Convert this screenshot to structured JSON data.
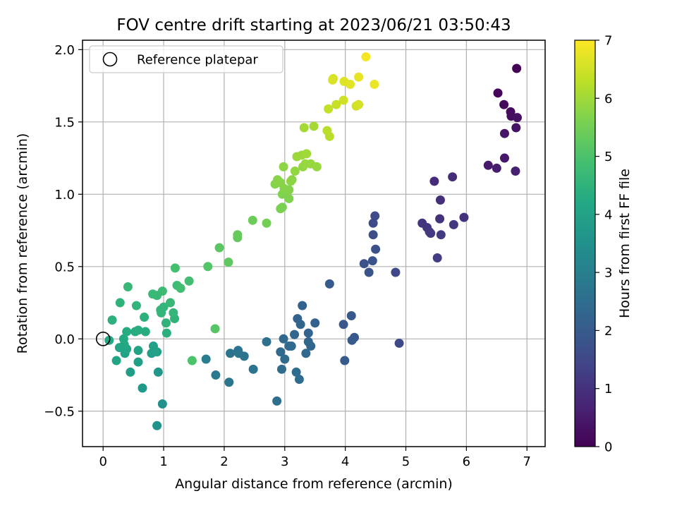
{
  "chart_data": {
    "type": "scatter",
    "title": "FOV centre drift starting at 2023/06/21 03:50:43",
    "xlabel": "Angular distance from reference (arcmin)",
    "ylabel": "Rotation from reference (arcmin)",
    "xlim": [
      -0.34,
      7.3
    ],
    "ylim": [
      -0.745,
      2.065
    ],
    "xticks": [
      "0",
      "1",
      "2",
      "3",
      "4",
      "5",
      "6",
      "7"
    ],
    "xtick_values": [
      0,
      1,
      2,
      3,
      4,
      5,
      6,
      7
    ],
    "yticks": [
      "−0.5",
      "0.0",
      "0.5",
      "1.0",
      "1.5",
      "2.0"
    ],
    "ytick_values": [
      -0.5,
      0,
      0.5,
      1.0,
      1.5,
      2.0
    ],
    "grid": true,
    "legend": {
      "placement": "top-left",
      "entries": [
        "Reference platepar"
      ]
    },
    "reference_point": {
      "x": 0,
      "y": 0
    },
    "colorbar": {
      "label": "Hours from first FF file",
      "colormap": "viridis",
      "range": [
        0,
        7
      ],
      "ticks": [
        "0",
        "1",
        "2",
        "3",
        "4",
        "5",
        "6",
        "7"
      ],
      "tick_values": [
        0,
        1,
        2,
        3,
        4,
        5,
        6,
        7
      ]
    },
    "points": [
      {
        "x": 6.83,
        "y": 1.87,
        "t": 0.05
      },
      {
        "x": 6.52,
        "y": 1.7,
        "t": 0.1
      },
      {
        "x": 6.62,
        "y": 1.62,
        "t": 0.15
      },
      {
        "x": 6.73,
        "y": 1.57,
        "t": 0.2
      },
      {
        "x": 6.74,
        "y": 1.54,
        "t": 0.25
      },
      {
        "x": 6.84,
        "y": 1.53,
        "t": 0.3
      },
      {
        "x": 6.82,
        "y": 1.46,
        "t": 0.35
      },
      {
        "x": 6.63,
        "y": 1.42,
        "t": 0.4
      },
      {
        "x": 6.63,
        "y": 1.25,
        "t": 0.45
      },
      {
        "x": 6.36,
        "y": 1.2,
        "t": 0.5
      },
      {
        "x": 6.5,
        "y": 1.18,
        "t": 0.55
      },
      {
        "x": 6.81,
        "y": 1.16,
        "t": 0.6
      },
      {
        "x": 5.47,
        "y": 1.09,
        "t": 0.85
      },
      {
        "x": 5.77,
        "y": 1.12,
        "t": 0.9
      },
      {
        "x": 5.57,
        "y": 0.96,
        "t": 0.95
      },
      {
        "x": 5.56,
        "y": 0.83,
        "t": 1.0
      },
      {
        "x": 5.96,
        "y": 0.84,
        "t": 1.0
      },
      {
        "x": 5.27,
        "y": 0.8,
        "t": 1.05
      },
      {
        "x": 5.35,
        "y": 0.77,
        "t": 1.1
      },
      {
        "x": 5.79,
        "y": 0.79,
        "t": 1.1
      },
      {
        "x": 5.39,
        "y": 0.74,
        "t": 1.15
      },
      {
        "x": 5.41,
        "y": 0.73,
        "t": 1.2
      },
      {
        "x": 5.58,
        "y": 0.72,
        "t": 1.2
      },
      {
        "x": 5.52,
        "y": 0.56,
        "t": 1.25
      },
      {
        "x": 4.49,
        "y": 0.85,
        "t": 1.6
      },
      {
        "x": 4.46,
        "y": 0.8,
        "t": 1.62
      },
      {
        "x": 4.46,
        "y": 0.72,
        "t": 1.65
      },
      {
        "x": 4.5,
        "y": 0.62,
        "t": 1.7
      },
      {
        "x": 4.31,
        "y": 0.52,
        "t": 1.75
      },
      {
        "x": 4.45,
        "y": 0.54,
        "t": 1.78
      },
      {
        "x": 4.39,
        "y": 0.46,
        "t": 1.8
      },
      {
        "x": 4.83,
        "y": 0.46,
        "t": 1.5
      },
      {
        "x": 4.89,
        "y": -0.03,
        "t": 1.55
      },
      {
        "x": 3.74,
        "y": 0.38,
        "t": 2.0
      },
      {
        "x": 4.1,
        "y": 0.16,
        "t": 1.9
      },
      {
        "x": 3.97,
        "y": 0.1,
        "t": 1.95
      },
      {
        "x": 4.15,
        "y": 0.01,
        "t": 1.9
      },
      {
        "x": 4.11,
        "y": -0.01,
        "t": 1.95
      },
      {
        "x": 3.99,
        "y": -0.15,
        "t": 2.0
      },
      {
        "x": 3.29,
        "y": 0.23,
        "t": 2.2
      },
      {
        "x": 3.21,
        "y": 0.14,
        "t": 2.25
      },
      {
        "x": 3.26,
        "y": 0.1,
        "t": 2.3
      },
      {
        "x": 3.5,
        "y": 0.11,
        "t": 2.2
      },
      {
        "x": 3.39,
        "y": 0.04,
        "t": 2.25
      },
      {
        "x": 3.16,
        "y": 0.03,
        "t": 2.3
      },
      {
        "x": 2.98,
        "y": 0.0,
        "t": 2.35
      },
      {
        "x": 3.39,
        "y": -0.02,
        "t": 2.3
      },
      {
        "x": 3.07,
        "y": -0.05,
        "t": 2.35
      },
      {
        "x": 3.11,
        "y": -0.05,
        "t": 2.4
      },
      {
        "x": 3.43,
        "y": -0.05,
        "t": 2.3
      },
      {
        "x": 2.93,
        "y": -0.09,
        "t": 2.4
      },
      {
        "x": 3.35,
        "y": -0.1,
        "t": 2.35
      },
      {
        "x": 3.0,
        "y": -0.14,
        "t": 2.45
      },
      {
        "x": 2.95,
        "y": -0.21,
        "t": 2.45
      },
      {
        "x": 3.19,
        "y": -0.23,
        "t": 2.5
      },
      {
        "x": 3.24,
        "y": -0.28,
        "t": 2.5
      },
      {
        "x": 2.87,
        "y": -0.43,
        "t": 2.55
      },
      {
        "x": 2.7,
        "y": -0.02,
        "t": 2.55
      },
      {
        "x": 2.23,
        "y": -0.08,
        "t": 2.65
      },
      {
        "x": 2.1,
        "y": -0.1,
        "t": 2.7
      },
      {
        "x": 2.24,
        "y": -0.1,
        "t": 2.72
      },
      {
        "x": 2.33,
        "y": -0.12,
        "t": 2.7
      },
      {
        "x": 2.48,
        "y": -0.21,
        "t": 2.65
      },
      {
        "x": 2.08,
        "y": -0.3,
        "t": 2.75
      },
      {
        "x": 1.86,
        "y": -0.25,
        "t": 2.85
      },
      {
        "x": 1.7,
        "y": -0.14,
        "t": 2.95
      },
      {
        "x": 0.98,
        "y": -0.45,
        "t": 3.5
      },
      {
        "x": 0.89,
        "y": -0.6,
        "t": 3.55
      },
      {
        "x": 0.91,
        "y": -0.23,
        "t": 3.65
      },
      {
        "x": 0.65,
        "y": -0.34,
        "t": 3.75
      },
      {
        "x": 0.45,
        "y": -0.23,
        "t": 3.85
      },
      {
        "x": 0.58,
        "y": -0.16,
        "t": 3.95
      },
      {
        "x": 0.22,
        "y": -0.15,
        "t": 4.1
      },
      {
        "x": 0.8,
        "y": -0.1,
        "t": 3.95
      },
      {
        "x": 0.36,
        "y": -0.1,
        "t": 4.05
      },
      {
        "x": 0.58,
        "y": -0.08,
        "t": 4.05
      },
      {
        "x": 0.83,
        "y": -0.05,
        "t": 4.0
      },
      {
        "x": 0.89,
        "y": -0.09,
        "t": 4.0
      },
      {
        "x": 0.27,
        "y": -0.06,
        "t": 4.15
      },
      {
        "x": 0.39,
        "y": -0.07,
        "t": 4.15
      },
      {
        "x": 0.35,
        "y": -0.04,
        "t": 4.2
      },
      {
        "x": 0.34,
        "y": 0.0,
        "t": 4.25
      },
      {
        "x": 0.1,
        "y": -0.01,
        "t": 4.2
      },
      {
        "x": 0.39,
        "y": 0.05,
        "t": 4.3
      },
      {
        "x": 0.53,
        "y": 0.05,
        "t": 4.3
      },
      {
        "x": 0.58,
        "y": 0.06,
        "t": 4.35
      },
      {
        "x": 0.7,
        "y": 0.05,
        "t": 4.35
      },
      {
        "x": 1.05,
        "y": 0.04,
        "t": 4.4
      },
      {
        "x": 0.15,
        "y": 0.13,
        "t": 4.45
      },
      {
        "x": 0.68,
        "y": 0.15,
        "t": 4.45
      },
      {
        "x": 1.04,
        "y": 0.11,
        "t": 4.5
      },
      {
        "x": 1.18,
        "y": 0.14,
        "t": 4.5
      },
      {
        "x": 0.28,
        "y": 0.25,
        "t": 4.5
      },
      {
        "x": 0.55,
        "y": 0.23,
        "t": 4.55
      },
      {
        "x": 0.95,
        "y": 0.2,
        "t": 4.55
      },
      {
        "x": 0.96,
        "y": 0.18,
        "t": 4.6
      },
      {
        "x": 1.16,
        "y": 0.18,
        "t": 4.6
      },
      {
        "x": 1.0,
        "y": 0.22,
        "t": 4.6
      },
      {
        "x": 1.11,
        "y": 0.25,
        "t": 4.65
      },
      {
        "x": 0.41,
        "y": 0.36,
        "t": 4.65
      },
      {
        "x": 0.82,
        "y": 0.31,
        "t": 4.7
      },
      {
        "x": 0.89,
        "y": 0.3,
        "t": 4.7
      },
      {
        "x": 0.98,
        "y": 0.33,
        "t": 4.75
      },
      {
        "x": 1.22,
        "y": 0.37,
        "t": 4.8
      },
      {
        "x": 1.28,
        "y": 0.35,
        "t": 4.85
      },
      {
        "x": 1.42,
        "y": 0.4,
        "t": 4.85
      },
      {
        "x": 1.19,
        "y": 0.49,
        "t": 4.9
      },
      {
        "x": 1.47,
        "y": -0.15,
        "t": 5.0
      },
      {
        "x": 1.85,
        "y": 0.07,
        "t": 5.15
      },
      {
        "x": 1.73,
        "y": 0.5,
        "t": 5.1
      },
      {
        "x": 2.07,
        "y": 0.53,
        "t": 5.25
      },
      {
        "x": 1.92,
        "y": 0.63,
        "t": 5.2
      },
      {
        "x": 2.22,
        "y": 0.7,
        "t": 5.3
      },
      {
        "x": 2.22,
        "y": 0.72,
        "t": 5.35
      },
      {
        "x": 2.47,
        "y": 0.82,
        "t": 5.4
      },
      {
        "x": 2.7,
        "y": 0.8,
        "t": 5.5
      },
      {
        "x": 2.93,
        "y": 0.9,
        "t": 5.6
      },
      {
        "x": 2.96,
        "y": 0.91,
        "t": 5.6
      },
      {
        "x": 3.07,
        "y": 0.97,
        "t": 5.65
      },
      {
        "x": 2.96,
        "y": 1.0,
        "t": 5.65
      },
      {
        "x": 3.07,
        "y": 1.03,
        "t": 5.7
      },
      {
        "x": 2.99,
        "y": 1.04,
        "t": 5.7
      },
      {
        "x": 2.84,
        "y": 1.07,
        "t": 5.7
      },
      {
        "x": 2.88,
        "y": 1.1,
        "t": 5.75
      },
      {
        "x": 2.93,
        "y": 1.08,
        "t": 5.75
      },
      {
        "x": 3.12,
        "y": 1.1,
        "t": 5.75
      },
      {
        "x": 3.1,
        "y": 1.09,
        "t": 5.8
      },
      {
        "x": 2.98,
        "y": 1.19,
        "t": 5.8
      },
      {
        "x": 3.17,
        "y": 1.16,
        "t": 5.85
      },
      {
        "x": 3.3,
        "y": 1.19,
        "t": 5.85
      },
      {
        "x": 3.34,
        "y": 1.21,
        "t": 5.9
      },
      {
        "x": 3.43,
        "y": 1.21,
        "t": 5.9
      },
      {
        "x": 3.53,
        "y": 1.19,
        "t": 5.9
      },
      {
        "x": 3.2,
        "y": 1.26,
        "t": 5.95
      },
      {
        "x": 3.28,
        "y": 1.27,
        "t": 5.95
      },
      {
        "x": 3.36,
        "y": 1.28,
        "t": 6.0
      },
      {
        "x": 3.32,
        "y": 1.46,
        "t": 6.05
      },
      {
        "x": 3.48,
        "y": 1.47,
        "t": 6.05
      },
      {
        "x": 3.7,
        "y": 1.44,
        "t": 6.25
      },
      {
        "x": 3.74,
        "y": 1.4,
        "t": 6.25
      },
      {
        "x": 3.72,
        "y": 1.59,
        "t": 6.35
      },
      {
        "x": 3.85,
        "y": 1.62,
        "t": 6.4
      },
      {
        "x": 3.97,
        "y": 1.65,
        "t": 6.5
      },
      {
        "x": 4.18,
        "y": 1.61,
        "t": 6.5
      },
      {
        "x": 4.22,
        "y": 1.62,
        "t": 6.55
      },
      {
        "x": 3.79,
        "y": 1.79,
        "t": 6.6
      },
      {
        "x": 3.8,
        "y": 1.8,
        "t": 6.6
      },
      {
        "x": 3.98,
        "y": 1.78,
        "t": 6.65
      },
      {
        "x": 4.08,
        "y": 1.76,
        "t": 6.7
      },
      {
        "x": 4.22,
        "y": 1.81,
        "t": 6.75
      },
      {
        "x": 4.48,
        "y": 1.76,
        "t": 6.8
      },
      {
        "x": 4.34,
        "y": 1.95,
        "t": 6.9
      }
    ]
  }
}
